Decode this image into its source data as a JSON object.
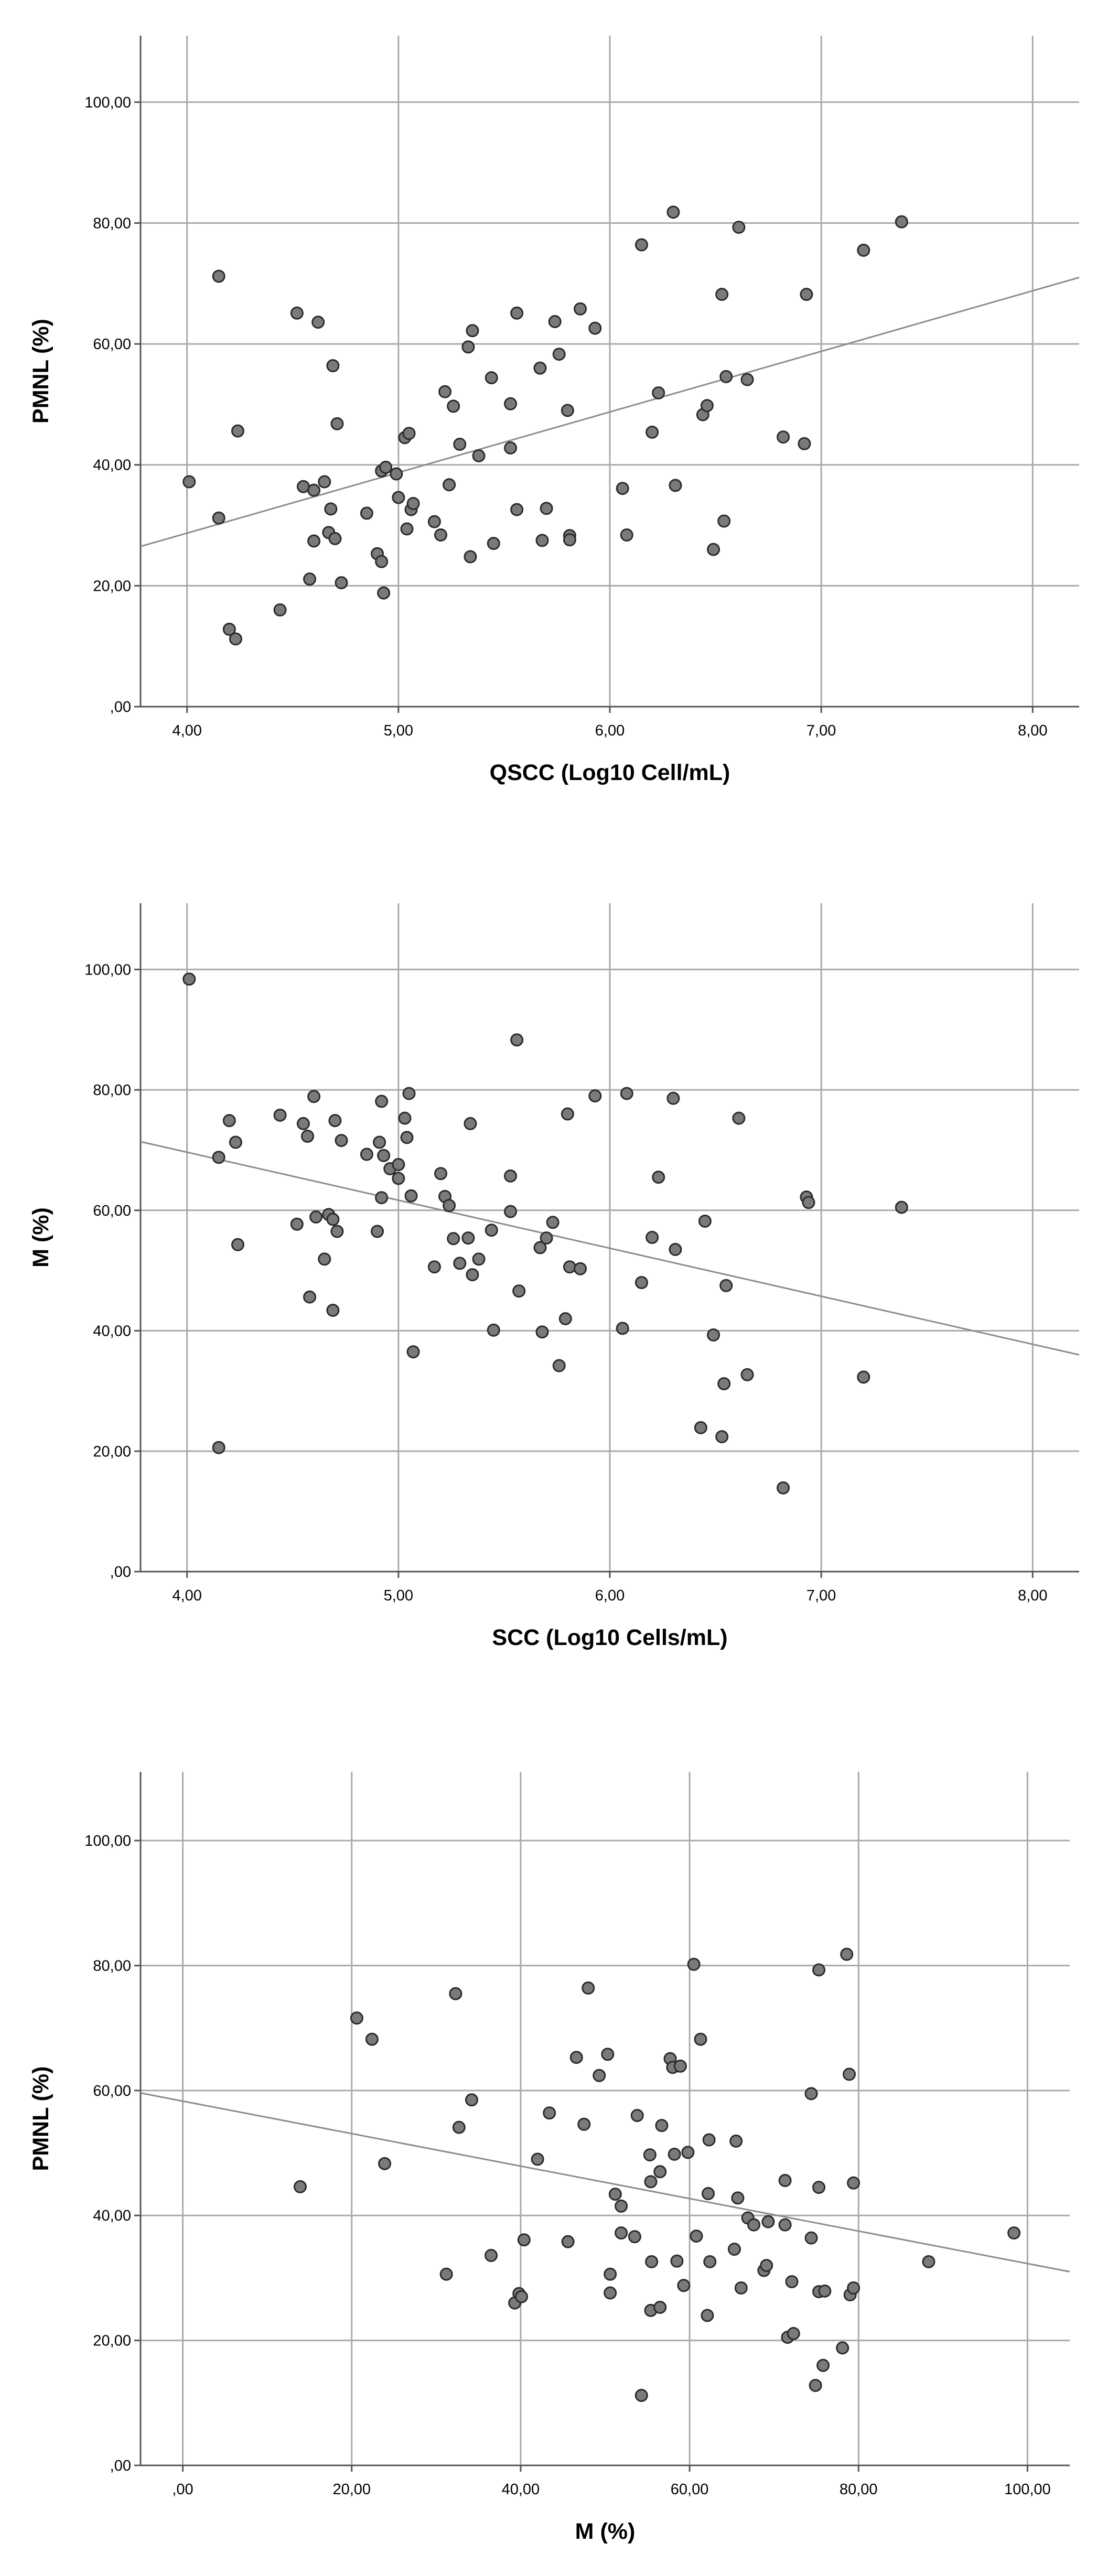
{
  "styles": {
    "background": "#ffffff",
    "gridColor": "#aaaaaa",
    "axisColor": "#555555",
    "pointFill": "#7a7a7a",
    "pointStroke": "#2b2b2b",
    "fitLineColor": "#8c8c8c"
  },
  "chart_data": [
    {
      "id": "chart-qscc-pmnl",
      "type": "scatter",
      "title": "",
      "xlabel": "QSCC (Log10 Cell/mL)",
      "ylabel": "PMNL (%)",
      "xlim": [
        3.78,
        8.22
      ],
      "ylim": [
        0,
        111
      ],
      "xticks": [
        4,
        5,
        6,
        7,
        8
      ],
      "xtick_labels": [
        "4,00",
        "5,00",
        "6,00",
        "7,00",
        "8,00"
      ],
      "yticks": [
        0,
        20,
        40,
        60,
        80,
        100
      ],
      "ytick_labels": [
        ",00",
        "20,00",
        "40,00",
        "60,00",
        "80,00",
        "100,00"
      ],
      "grid": true,
      "legend": "none",
      "fit_line": {
        "x": [
          3.78,
          8.22
        ],
        "y": [
          26.5,
          71.0
        ]
      },
      "points": [
        [
          4.01,
          37.2
        ],
        [
          4.15,
          71.2
        ],
        [
          4.15,
          31.2
        ],
        [
          4.2,
          12.8
        ],
        [
          4.23,
          11.2
        ],
        [
          4.24,
          45.6
        ],
        [
          4.44,
          16.0
        ],
        [
          4.52,
          65.1
        ],
        [
          4.55,
          36.4
        ],
        [
          4.58,
          21.1
        ],
        [
          4.6,
          27.4
        ],
        [
          4.6,
          35.8
        ],
        [
          4.62,
          63.6
        ],
        [
          4.65,
          37.2
        ],
        [
          4.67,
          28.8
        ],
        [
          4.68,
          32.7
        ],
        [
          4.69,
          56.4
        ],
        [
          4.7,
          27.8
        ],
        [
          4.71,
          46.8
        ],
        [
          4.73,
          20.5
        ],
        [
          4.85,
          32.0
        ],
        [
          4.9,
          25.3
        ],
        [
          4.92,
          39.0
        ],
        [
          4.92,
          24.0
        ],
        [
          4.93,
          18.8
        ],
        [
          4.94,
          39.6
        ],
        [
          4.99,
          38.5
        ],
        [
          5.0,
          34.6
        ],
        [
          5.03,
          44.5
        ],
        [
          5.04,
          29.4
        ],
        [
          5.05,
          45.2
        ],
        [
          5.06,
          32.6
        ],
        [
          5.07,
          33.6
        ],
        [
          5.17,
          30.6
        ],
        [
          5.2,
          28.4
        ],
        [
          5.22,
          52.1
        ],
        [
          5.24,
          36.7
        ],
        [
          5.26,
          49.7
        ],
        [
          5.29,
          43.4
        ],
        [
          5.33,
          59.5
        ],
        [
          5.34,
          24.8
        ],
        [
          5.35,
          62.2
        ],
        [
          5.38,
          41.5
        ],
        [
          5.44,
          54.4
        ],
        [
          5.45,
          27.0
        ],
        [
          5.53,
          42.8
        ],
        [
          5.53,
          50.1
        ],
        [
          5.56,
          65.1
        ],
        [
          5.56,
          32.6
        ],
        [
          5.67,
          56.0
        ],
        [
          5.68,
          27.5
        ],
        [
          5.7,
          32.8
        ],
        [
          5.74,
          63.7
        ],
        [
          5.76,
          58.3
        ],
        [
          5.8,
          49.0
        ],
        [
          5.81,
          28.3
        ],
        [
          5.81,
          27.6
        ],
        [
          5.86,
          65.8
        ],
        [
          5.93,
          62.6
        ],
        [
          6.06,
          36.1
        ],
        [
          6.08,
          28.4
        ],
        [
          6.15,
          76.4
        ],
        [
          6.2,
          45.4
        ],
        [
          6.23,
          51.9
        ],
        [
          6.3,
          81.8
        ],
        [
          6.31,
          36.6
        ],
        [
          6.44,
          48.3
        ],
        [
          6.46,
          49.8
        ],
        [
          6.49,
          26.0
        ],
        [
          6.53,
          68.2
        ],
        [
          6.54,
          30.7
        ],
        [
          6.55,
          54.6
        ],
        [
          6.61,
          79.3
        ],
        [
          6.65,
          54.1
        ],
        [
          6.82,
          44.6
        ],
        [
          6.92,
          43.5
        ],
        [
          6.93,
          68.2
        ],
        [
          7.2,
          75.5
        ],
        [
          7.38,
          80.2
        ]
      ]
    },
    {
      "id": "chart-scc-m",
      "type": "scatter",
      "title": "",
      "xlabel": "SCC (Log10 Cells/mL)",
      "ylabel": "M (%)",
      "xlim": [
        3.78,
        8.22
      ],
      "ylim": [
        0,
        111
      ],
      "xticks": [
        4,
        5,
        6,
        7,
        8
      ],
      "xtick_labels": [
        "4,00",
        "5,00",
        "6,00",
        "7,00",
        "8,00"
      ],
      "yticks": [
        0,
        20,
        40,
        60,
        80,
        100
      ],
      "ytick_labels": [
        ",00",
        "20,00",
        "40,00",
        "60,00",
        "80,00",
        "100,00"
      ],
      "grid": true,
      "legend": "none",
      "fit_line": {
        "x": [
          3.78,
          8.22
        ],
        "y": [
          71.4,
          36.0
        ]
      },
      "points": [
        [
          4.01,
          98.4
        ],
        [
          4.15,
          68.8
        ],
        [
          4.15,
          20.6
        ],
        [
          4.2,
          74.9
        ],
        [
          4.23,
          71.3
        ],
        [
          4.24,
          54.3
        ],
        [
          4.44,
          75.8
        ],
        [
          4.52,
          57.7
        ],
        [
          4.55,
          74.4
        ],
        [
          4.57,
          72.3
        ],
        [
          4.58,
          45.6
        ],
        [
          4.6,
          78.9
        ],
        [
          4.61,
          58.9
        ],
        [
          4.65,
          51.9
        ],
        [
          4.67,
          59.3
        ],
        [
          4.69,
          58.5
        ],
        [
          4.69,
          43.4
        ],
        [
          4.7,
          74.9
        ],
        [
          4.71,
          56.5
        ],
        [
          4.73,
          71.6
        ],
        [
          4.85,
          69.3
        ],
        [
          4.9,
          56.5
        ],
        [
          4.91,
          71.3
        ],
        [
          4.92,
          62.1
        ],
        [
          4.92,
          78.1
        ],
        [
          4.93,
          69.1
        ],
        [
          4.96,
          66.9
        ],
        [
          5.0,
          67.6
        ],
        [
          5.0,
          65.3
        ],
        [
          5.03,
          75.3
        ],
        [
          5.04,
          72.1
        ],
        [
          5.05,
          79.4
        ],
        [
          5.06,
          62.4
        ],
        [
          5.07,
          36.5
        ],
        [
          5.17,
          50.6
        ],
        [
          5.2,
          66.1
        ],
        [
          5.22,
          62.3
        ],
        [
          5.24,
          60.8
        ],
        [
          5.26,
          55.3
        ],
        [
          5.29,
          51.2
        ],
        [
          5.33,
          55.4
        ],
        [
          5.34,
          74.4
        ],
        [
          5.35,
          49.3
        ],
        [
          5.38,
          51.9
        ],
        [
          5.44,
          56.7
        ],
        [
          5.45,
          40.1
        ],
        [
          5.53,
          65.7
        ],
        [
          5.53,
          59.8
        ],
        [
          5.56,
          88.3
        ],
        [
          5.57,
          46.6
        ],
        [
          5.67,
          53.8
        ],
        [
          5.68,
          39.8
        ],
        [
          5.7,
          55.4
        ],
        [
          5.73,
          58.0
        ],
        [
          5.76,
          34.2
        ],
        [
          5.79,
          42.0
        ],
        [
          5.8,
          76.0
        ],
        [
          5.81,
          50.6
        ],
        [
          5.86,
          50.3
        ],
        [
          5.93,
          79.0
        ],
        [
          6.06,
          40.4
        ],
        [
          6.08,
          79.4
        ],
        [
          6.15,
          48.0
        ],
        [
          6.2,
          55.5
        ],
        [
          6.23,
          65.5
        ],
        [
          6.3,
          78.6
        ],
        [
          6.31,
          53.5
        ],
        [
          6.43,
          23.9
        ],
        [
          6.45,
          58.2
        ],
        [
          6.49,
          39.3
        ],
        [
          6.53,
          22.4
        ],
        [
          6.54,
          31.2
        ],
        [
          6.55,
          47.5
        ],
        [
          6.61,
          75.3
        ],
        [
          6.65,
          32.7
        ],
        [
          6.82,
          13.9
        ],
        [
          6.93,
          62.2
        ],
        [
          6.94,
          61.3
        ],
        [
          7.2,
          32.3
        ],
        [
          7.38,
          60.5
        ]
      ]
    },
    {
      "id": "chart-m-pmnl",
      "type": "scatter",
      "title": "",
      "xlabel": "M (%)",
      "ylabel": "PMNL (%)",
      "xlim": [
        -5,
        105
      ],
      "ylim": [
        0,
        111
      ],
      "xticks": [
        0,
        20,
        40,
        60,
        80,
        100
      ],
      "xtick_labels": [
        ",00",
        "20,00",
        "40,00",
        "60,00",
        "80,00",
        "100,00"
      ],
      "yticks": [
        0,
        20,
        40,
        60,
        80,
        100
      ],
      "ytick_labels": [
        ",00",
        "20,00",
        "40,00",
        "60,00",
        "80,00",
        "100,00"
      ],
      "grid": true,
      "legend": "none",
      "fit_line": {
        "x": [
          -5,
          105
        ],
        "y": [
          59.6,
          31.0
        ]
      },
      "points": [
        [
          13.9,
          44.6
        ],
        [
          20.6,
          71.6
        ],
        [
          22.4,
          68.2
        ],
        [
          23.9,
          48.3
        ],
        [
          31.2,
          30.6
        ],
        [
          32.3,
          75.5
        ],
        [
          32.7,
          54.1
        ],
        [
          34.2,
          58.5
        ],
        [
          36.5,
          33.6
        ],
        [
          39.3,
          26.0
        ],
        [
          39.8,
          27.5
        ],
        [
          40.1,
          27.0
        ],
        [
          40.4,
          36.1
        ],
        [
          42.0,
          49.0
        ],
        [
          43.4,
          56.4
        ],
        [
          45.6,
          35.8
        ],
        [
          46.6,
          65.3
        ],
        [
          47.5,
          54.6
        ],
        [
          48.0,
          76.4
        ],
        [
          49.3,
          62.4
        ],
        [
          50.3,
          65.8
        ],
        [
          50.6,
          27.6
        ],
        [
          50.6,
          30.6
        ],
        [
          51.2,
          43.4
        ],
        [
          51.9,
          37.2
        ],
        [
          51.9,
          41.5
        ],
        [
          53.5,
          36.6
        ],
        [
          53.8,
          56.0
        ],
        [
          54.3,
          11.2
        ],
        [
          55.3,
          49.7
        ],
        [
          55.4,
          45.4
        ],
        [
          55.4,
          24.8
        ],
        [
          55.5,
          32.6
        ],
        [
          56.5,
          25.3
        ],
        [
          56.5,
          47.0
        ],
        [
          56.7,
          54.4
        ],
        [
          57.7,
          65.1
        ],
        [
          58.0,
          63.7
        ],
        [
          58.2,
          49.8
        ],
        [
          58.5,
          32.7
        ],
        [
          58.9,
          63.9
        ],
        [
          59.3,
          28.8
        ],
        [
          59.8,
          50.1
        ],
        [
          60.5,
          80.2
        ],
        [
          60.8,
          36.7
        ],
        [
          61.3,
          68.2
        ],
        [
          62.1,
          24.0
        ],
        [
          62.2,
          43.5
        ],
        [
          62.3,
          52.1
        ],
        [
          62.4,
          32.6
        ],
        [
          65.3,
          34.6
        ],
        [
          65.5,
          51.9
        ],
        [
          65.7,
          42.8
        ],
        [
          66.1,
          28.4
        ],
        [
          66.9,
          39.6
        ],
        [
          67.6,
          38.5
        ],
        [
          68.8,
          31.2
        ],
        [
          69.1,
          32.0
        ],
        [
          69.3,
          39.0
        ],
        [
          71.3,
          45.6
        ],
        [
          71.3,
          38.5
        ],
        [
          71.6,
          20.5
        ],
        [
          72.1,
          29.4
        ],
        [
          72.3,
          21.1
        ],
        [
          74.4,
          59.5
        ],
        [
          74.4,
          36.4
        ],
        [
          74.9,
          12.8
        ],
        [
          75.3,
          27.8
        ],
        [
          75.3,
          79.3
        ],
        [
          75.8,
          16.0
        ],
        [
          75.3,
          44.5
        ],
        [
          76.0,
          27.9
        ],
        [
          78.1,
          18.8
        ],
        [
          78.6,
          81.8
        ],
        [
          78.9,
          62.6
        ],
        [
          79.0,
          27.3
        ],
        [
          79.4,
          45.2
        ],
        [
          79.4,
          28.4
        ],
        [
          88.3,
          32.6
        ],
        [
          98.4,
          37.2
        ]
      ]
    }
  ]
}
